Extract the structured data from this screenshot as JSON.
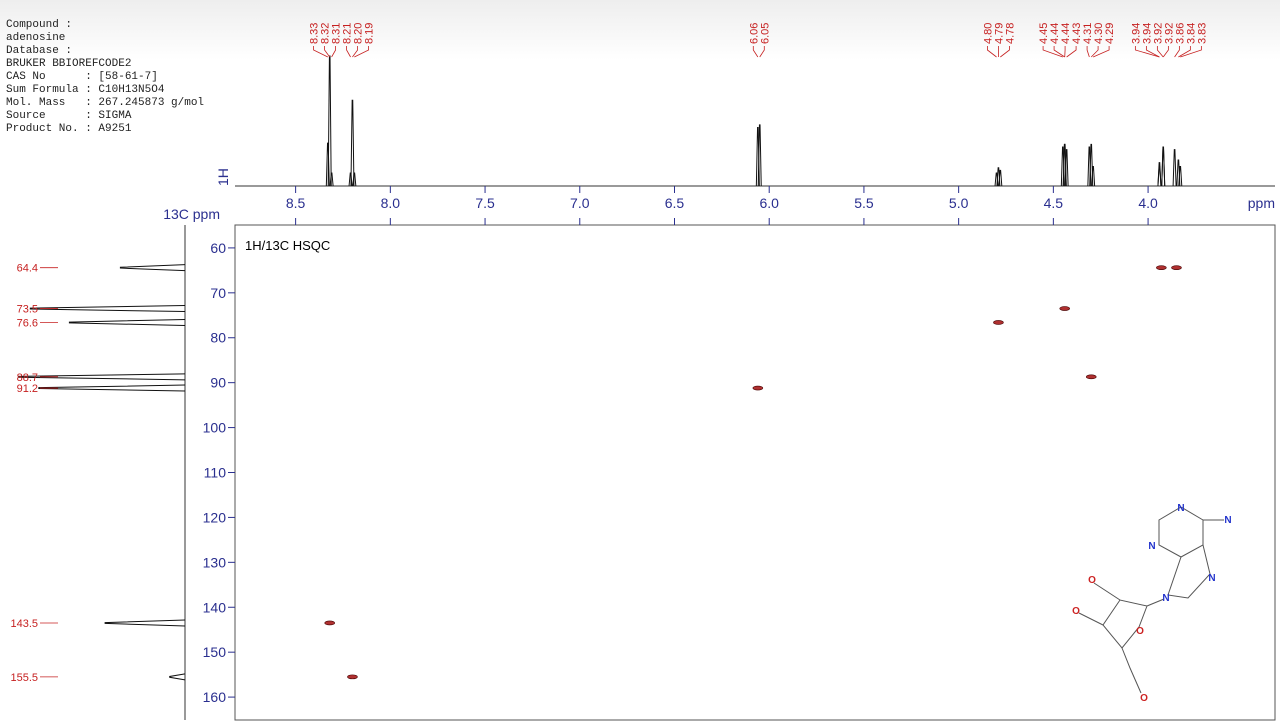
{
  "info": [
    "Compound :",
    "adenosine",
    "Database :",
    "BRUKER BBIOREFCODE2",
    "CAS No      : [58-61-7]",
    "Sum Formula : C10H13N5O4",
    "Mol. Mass   : 267.245873 g/mol",
    "Source      : SIGMA",
    "Product No. : A9251"
  ],
  "chart_data": {
    "type": "scatter",
    "title": "1H/13C HSQC",
    "xlabel": "ppm",
    "ylabel": "13C ppm",
    "color": "#b03030",
    "x": [
      8.32,
      8.2,
      6.06,
      4.79,
      4.44,
      4.3,
      3.93,
      3.85
    ],
    "values": [
      143.5,
      155.5,
      91.2,
      76.6,
      73.5,
      88.7,
      64.4,
      64.4
    ],
    "xlim": [
      8.82,
      3.33
    ],
    "ylim": [
      54.9,
      165.1
    ],
    "xticks": [
      8.5,
      {
        "value": 8,
        "label": "8.0"
      },
      7.5,
      {
        "value": 7,
        "label": "7.0"
      },
      6.5,
      {
        "value": 6,
        "label": "6.0"
      },
      5.5,
      {
        "value": 5,
        "label": "5.0"
      },
      4.5,
      {
        "value": 4,
        "label": "4.0"
      }
    ],
    "yticks": [
      60,
      70,
      80,
      90,
      100,
      110,
      120,
      130,
      140,
      150,
      160
    ],
    "projection_1h": {
      "label": "1H",
      "peaks": [
        8.33,
        8.32,
        8.31,
        8.21,
        {
          "value": 8.2,
          "label": "8.20"
        },
        8.19,
        6.06,
        6.05,
        {
          "value": 4.8,
          "label": "4.80"
        },
        4.79,
        4.78,
        4.45,
        4.44,
        4.44,
        4.43,
        4.31,
        {
          "value": 4.3,
          "label": "4.30"
        },
        4.29,
        3.94,
        3.94,
        3.92,
        3.92,
        3.86,
        3.84,
        3.83
      ],
      "intensities": [
        33,
        100,
        10,
        10,
        66,
        10,
        45,
        47,
        10,
        14,
        12,
        30,
        32,
        32,
        28,
        30,
        32,
        15,
        18,
        15,
        30,
        28,
        28,
        20,
        15
      ]
    },
    "projection_13c": {
      "peaks": [
        64.4,
        73.5,
        76.6,
        88.7,
        91.2,
        143.5,
        155.5
      ],
      "intensities": [
        38,
        91,
        68,
        98,
        86,
        47,
        9
      ]
    }
  },
  "molecule": {
    "atoms": [
      "N",
      "N",
      "N",
      "N",
      "N",
      "O",
      "O",
      "O",
      "O"
    ]
  }
}
